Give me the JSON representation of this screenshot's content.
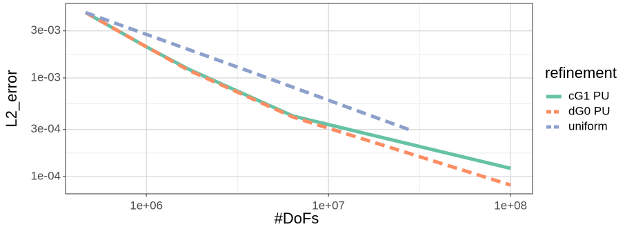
{
  "chart_data": {
    "type": "line",
    "xlabel": "#DoFs",
    "ylabel": "L2_error",
    "log_x": true,
    "log_y": true,
    "grid": true,
    "legend_title": "refinement",
    "legend": "right",
    "xlim": [
      360000,
      132000000
    ],
    "ylim": [
      6.68e-05,
      0.00569
    ],
    "xticks": [
      {
        "value": 1000000,
        "label": "1e+06"
      },
      {
        "value": 10000000,
        "label": "1e+07"
      },
      {
        "value": 100000000,
        "label": "1e+08"
      }
    ],
    "yticks": [
      {
        "value": 0.0001,
        "label": "1e-04"
      },
      {
        "value": 0.0003,
        "label": "3e-04"
      },
      {
        "value": 0.001,
        "label": "1e-03"
      },
      {
        "value": 0.003,
        "label": "3e-03"
      }
    ],
    "series": [
      {
        "name": "cG1 PU",
        "color": "#66c2a5",
        "dashed": false,
        "x": [
          464000,
          1000000,
          1700000,
          6400000,
          100000000
        ],
        "values": [
          0.0046,
          0.00207,
          0.00123,
          0.00041,
          0.000121
        ]
      },
      {
        "name": "dG0 PU",
        "color": "#fc8d62",
        "dashed": true,
        "x": [
          464000,
          1000000,
          1700000,
          6400000,
          100000000
        ],
        "values": [
          0.0046,
          0.00207,
          0.0012,
          0.0004,
          8.2e-05
        ]
      },
      {
        "name": "uniform",
        "color": "#8da0cb",
        "dashed": true,
        "x": [
          464000,
          3700000,
          29000000
        ],
        "values": [
          0.0046,
          0.00116,
          0.00029
        ]
      }
    ]
  }
}
